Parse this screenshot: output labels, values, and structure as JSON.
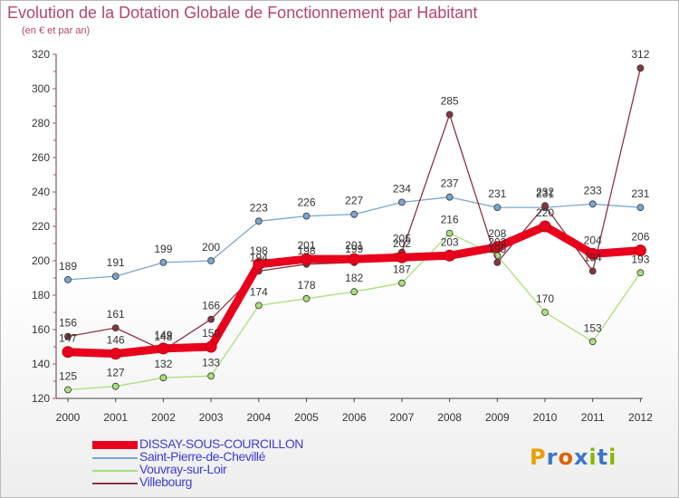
{
  "header": {
    "title": "Evolution de la Dotation Globale de Fonctionnement par Habitant",
    "subtitle": "(en € et par an)"
  },
  "logo": {
    "text": "Proxiti",
    "colors": [
      "#e8a000",
      "#3a78c8",
      "#e06000",
      "#3a78c8",
      "#88b800",
      "#3a78c8",
      "#88b800"
    ]
  },
  "chart_data": {
    "type": "line",
    "x": [
      "2000",
      "2001",
      "2002",
      "2003",
      "2004",
      "2005",
      "2006",
      "2007",
      "2008",
      "2009",
      "2010",
      "2011",
      "2012"
    ],
    "ylim": [
      120,
      320
    ],
    "yticks": [
      120,
      140,
      160,
      180,
      200,
      220,
      240,
      260,
      280,
      300,
      320
    ],
    "grid": false,
    "legend_position": "bottom-left",
    "series": [
      {
        "name": "DISSAY-SOUS-COURCILLON",
        "color": "#e8001c",
        "values": [
          147,
          146,
          149,
          150,
          198,
          201,
          201,
          202,
          203,
          208,
          220,
          204,
          206
        ]
      },
      {
        "name": "Saint-Pierre-de-Chevillé",
        "color": "#7aa6d0",
        "values": [
          189,
          191,
          199,
          200,
          223,
          226,
          227,
          234,
          237,
          231,
          231,
          233,
          231
        ]
      },
      {
        "name": "Vouvray-sur-Loir",
        "color": "#a8e07a",
        "values": [
          125,
          127,
          132,
          133,
          174,
          178,
          182,
          187,
          216,
          203,
          170,
          153,
          193
        ]
      },
      {
        "name": "Villebourg",
        "color": "#8a3440",
        "values": [
          156,
          161,
          148,
          166,
          194,
          198,
          199,
          205,
          285,
          199,
          232,
          194,
          312
        ]
      }
    ]
  }
}
